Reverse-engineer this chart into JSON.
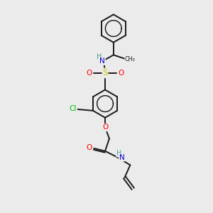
{
  "bg_color": "#ebebeb",
  "bond_color": "#1a1a1a",
  "atom_colors": {
    "O": "#ff0000",
    "N": "#0000cc",
    "S": "#cccc00",
    "Cl": "#00bb00",
    "H": "#4a9a9a"
  },
  "figsize": [
    3.0,
    3.0
  ],
  "dpi": 100,
  "lw": 1.4,
  "ring_r": 20,
  "fs": 7.0
}
